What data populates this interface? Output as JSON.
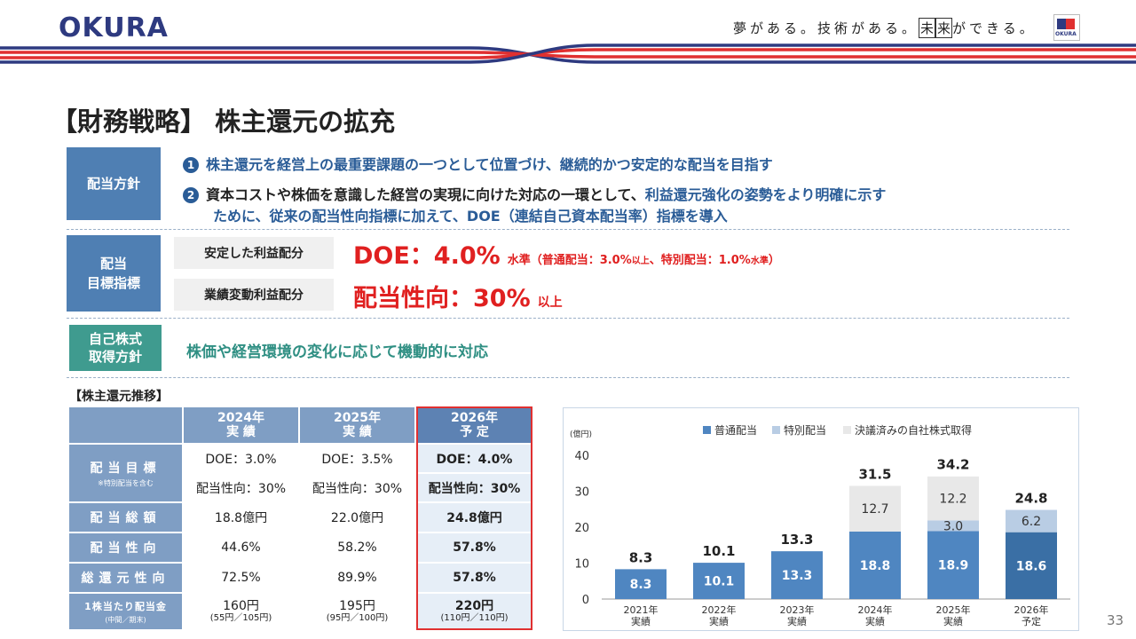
{
  "header": {
    "logo": "OKURA",
    "tagline_pre": "夢がある。技術がある。",
    "tagline_box1": "未",
    "tagline_box2": "来",
    "tagline_post": "ができる。",
    "mini_logo_text": "OKURA",
    "colors": {
      "navy": "#2e3a80",
      "red": "#e03030"
    }
  },
  "title": "【財務戦略】 株主還元の拡充",
  "dividend_policy": {
    "label": "配当方針",
    "item1_number": "❶",
    "item1": "株主還元を経営上の最重要課題の一つとして位置づけ、継続的かつ安定的な配当を目指す",
    "item2_number": "❷",
    "item2_a_dark": "資本コストや株価を意識した経営の実現に向けた対応の一環として、",
    "item2_a_blue": "利益還元強化の姿勢をより明確に示す",
    "item2_b": "ために、従来の配当性向指標に加えて、DOE（連結自己資本配当率）指標を導入"
  },
  "dividend_target": {
    "label_line1": "配当",
    "label_line2": "目標指標",
    "row1_label": "安定した利益配分",
    "row1_value": "DOE：4.0%",
    "row1_note_a": "水準（普通配当：3.0%",
    "row1_note_b": "以上",
    "row1_note_c": "、特別配当：1.0%",
    "row1_note_d": "水準",
    "row1_note_e": "）",
    "row2_label": "業績変動利益配分",
    "row2_value": "配当性向：30%",
    "row2_note": "以上"
  },
  "buyback_policy": {
    "label_line1": "自己株式",
    "label_line2": "取得方針",
    "text": "株価や経営環境の変化に応じて機動的に対応"
  },
  "table": {
    "title": "【株主還元推移】",
    "columns": [
      {
        "year": "2024年",
        "status": "実 績"
      },
      {
        "year": "2025年",
        "status": "実 績"
      },
      {
        "year": "2026年",
        "status": "予 定"
      }
    ],
    "row_target_label": "配当目標",
    "row_target_note": "※特別配当を含む",
    "row_doe": [
      "DOE：3.0%",
      "DOE：3.5%",
      "DOE：4.0%"
    ],
    "row_payout_target": [
      "配当性向：30%",
      "配当性向：30%",
      "配当性向：30%"
    ],
    "row_total_label": "配当総額",
    "row_total": [
      "18.8億円",
      "22.0億円",
      "24.8億円"
    ],
    "row_payout_label": "配当性向",
    "row_payout": [
      "44.6%",
      "58.2%",
      "57.8%"
    ],
    "row_return_label": "総還元性向",
    "row_return": [
      "72.5%",
      "89.9%",
      "57.8%"
    ],
    "row_dps_label": "1株当たり配当金",
    "row_dps_note": "(中間／期末)",
    "row_dps": [
      "160円",
      "195円",
      "220円"
    ],
    "row_dps_split": [
      "(55円／105円)",
      "(95円／100円)",
      "(110円／110円)"
    ]
  },
  "chart_data": {
    "type": "bar",
    "stacked": true,
    "unit_label": "(億円)",
    "ylim": [
      0,
      40
    ],
    "yticks": [
      0,
      10,
      20,
      30,
      40
    ],
    "categories": [
      "2021年",
      "2022年",
      "2023年",
      "2024年",
      "2025年",
      "2026年"
    ],
    "category_status": [
      "実績",
      "実績",
      "実績",
      "実績",
      "実績",
      "予定"
    ],
    "series": [
      {
        "name": "普通配当",
        "values": [
          8.3,
          10.1,
          13.3,
          18.8,
          18.9,
          18.6
        ],
        "color": "#4f86c1",
        "forecast_color": "#3a6fa5"
      },
      {
        "name": "特別配当",
        "values": [
          0,
          0,
          0,
          0,
          3.0,
          6.2
        ],
        "color": "#b9cde4"
      },
      {
        "name": "決議済みの自社株式取得",
        "values": [
          0,
          0,
          0,
          12.7,
          12.2,
          0
        ],
        "color": "#e8e8e8"
      }
    ],
    "totals": [
      8.3,
      10.1,
      13.3,
      31.5,
      34.2,
      24.8
    ],
    "legend_position": "top"
  },
  "page_number": "33"
}
